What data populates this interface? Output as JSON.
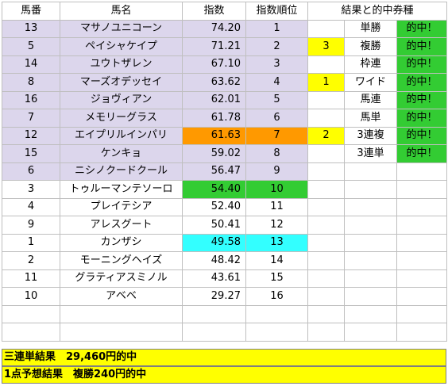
{
  "headers": [
    "馬番",
    "馬名",
    "指数",
    "指数順位",
    "結果と的中券種"
  ],
  "rows": [
    {
      "num": "13",
      "name": "マサノユニコーン",
      "index": "74.20",
      "rank": "1",
      "pos": "",
      "bet": "単勝",
      "hit": "的中！"
    },
    {
      "num": "5",
      "name": "ペイシャケイプ",
      "index": "71.21",
      "rank": "2",
      "pos": "3",
      "bet": "複勝",
      "hit": "的中！"
    },
    {
      "num": "14",
      "name": "ユウトザレン",
      "index": "67.10",
      "rank": "3",
      "pos": "",
      "bet": "枠連",
      "hit": "的中！"
    },
    {
      "num": "8",
      "name": "マーズオデッセイ",
      "index": "63.62",
      "rank": "4",
      "pos": "1",
      "bet": "ワイド",
      "hit": "的中！"
    },
    {
      "num": "16",
      "name": "ジョヴィアン",
      "index": "62.01",
      "rank": "5",
      "pos": "",
      "bet": "馬連",
      "hit": "的中！"
    },
    {
      "num": "7",
      "name": "メモリーグラス",
      "index": "61.78",
      "rank": "6",
      "pos": "",
      "bet": "馬単",
      "hit": "的中！"
    },
    {
      "num": "12",
      "name": "エイプリルインパリ",
      "index": "61.63",
      "rank": "7",
      "pos": "2",
      "bet": "3連複",
      "hit": "的中！"
    },
    {
      "num": "15",
      "name": "ケンキョ",
      "index": "59.02",
      "rank": "8",
      "pos": "",
      "bet": "3連単",
      "hit": "的中！"
    },
    {
      "num": "6",
      "name": "ニシノクードクール",
      "index": "56.47",
      "rank": "9",
      "pos": "",
      "bet": "",
      "hit": ""
    },
    {
      "num": "3",
      "name": "トゥルーマンテソーロ",
      "index": "54.40",
      "rank": "10",
      "pos": "",
      "bet": "",
      "hit": ""
    },
    {
      "num": "4",
      "name": "プレイテシア",
      "index": "52.40",
      "rank": "11",
      "pos": "",
      "bet": "",
      "hit": ""
    },
    {
      "num": "9",
      "name": "アレスグート",
      "index": "50.41",
      "rank": "12",
      "pos": "",
      "bet": "",
      "hit": ""
    },
    {
      "num": "1",
      "name": "カンザシ",
      "index": "49.58",
      "rank": "13",
      "pos": "",
      "bet": "",
      "hit": ""
    },
    {
      "num": "2",
      "name": "モーニングヘイズ",
      "index": "48.42",
      "rank": "14",
      "pos": "",
      "bet": "",
      "hit": ""
    },
    {
      "num": "11",
      "name": "グラティアスミノル",
      "index": "43.61",
      "rank": "15",
      "pos": "",
      "bet": "",
      "hit": ""
    },
    {
      "num": "10",
      "name": "アベベ",
      "index": "29.27",
      "rank": "16",
      "pos": "",
      "bet": "",
      "hit": ""
    }
  ],
  "footer": {
    "trifecta": "三連単結果　29,460円的中",
    "single": "1点予想結果　複勝240円的中"
  },
  "colors": {
    "top_picks": "#dcd6ec",
    "highlight_orange": "#ff9900",
    "highlight_green": "#33cc33",
    "highlight_cyan": "#33ffff",
    "finish_yellow": "#ffff00",
    "hit_green": "#33cc33"
  }
}
